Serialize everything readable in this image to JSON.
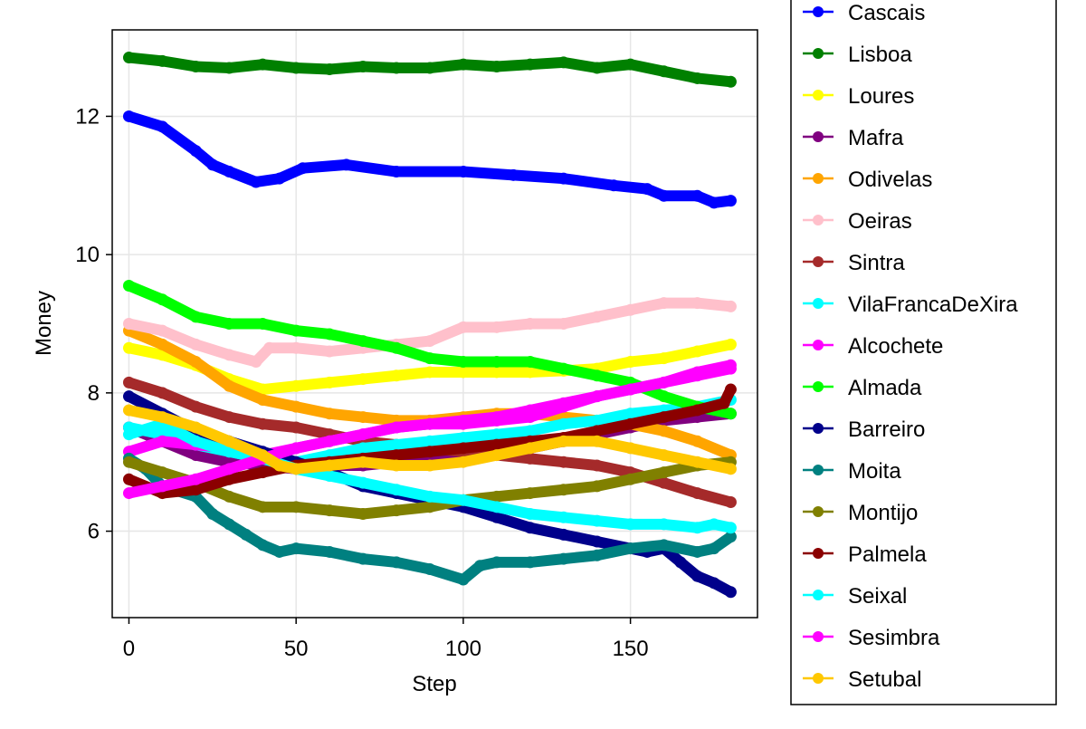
{
  "chart_data": {
    "type": "line",
    "title": "",
    "xlabel": "Step",
    "ylabel": "Money",
    "xlim": [
      -5,
      188
    ],
    "ylim": [
      4.75,
      13.25
    ],
    "x_ticks": [
      0,
      50,
      100,
      150
    ],
    "y_ticks": [
      6,
      8,
      10,
      12
    ],
    "grid": true,
    "legend_position": "right",
    "series": [
      {
        "name": "Cascais",
        "color": "#0000ff",
        "x": [
          0,
          10,
          20,
          25,
          30,
          38,
          45,
          52,
          65,
          80,
          100,
          115,
          130,
          145,
          155,
          160,
          170,
          175,
          180
        ],
        "y": [
          12.0,
          11.85,
          11.5,
          11.3,
          11.2,
          11.05,
          11.1,
          11.25,
          11.3,
          11.2,
          11.2,
          11.15,
          11.1,
          11.0,
          10.95,
          10.85,
          10.85,
          10.75,
          10.78
        ]
      },
      {
        "name": "Lisboa",
        "color": "#008000",
        "x": [
          0,
          10,
          20,
          30,
          40,
          50,
          60,
          70,
          80,
          90,
          100,
          110,
          120,
          130,
          140,
          150,
          160,
          170,
          180
        ],
        "y": [
          12.85,
          12.8,
          12.72,
          12.7,
          12.75,
          12.7,
          12.68,
          12.72,
          12.7,
          12.7,
          12.75,
          12.72,
          12.75,
          12.78,
          12.7,
          12.75,
          12.65,
          12.55,
          12.5
        ]
      },
      {
        "name": "Loures",
        "color": "#ffff00",
        "x": [
          0,
          10,
          20,
          30,
          40,
          50,
          60,
          70,
          80,
          90,
          100,
          110,
          120,
          130,
          140,
          150,
          160,
          170,
          180
        ],
        "y": [
          8.65,
          8.55,
          8.4,
          8.2,
          8.05,
          8.1,
          8.15,
          8.2,
          8.25,
          8.3,
          8.3,
          8.3,
          8.3,
          8.32,
          8.35,
          8.45,
          8.5,
          8.6,
          8.7
        ]
      },
      {
        "name": "Mafra",
        "color": "#800080",
        "x": [
          0,
          10,
          20,
          30,
          40,
          50,
          60,
          70,
          80,
          90,
          100,
          110,
          120,
          130,
          140,
          150,
          160,
          170,
          180
        ],
        "y": [
          7.5,
          7.3,
          7.1,
          7.0,
          6.95,
          6.9,
          6.95,
          6.95,
          7.0,
          7.05,
          7.1,
          7.15,
          7.2,
          7.3,
          7.4,
          7.5,
          7.6,
          7.65,
          7.7
        ]
      },
      {
        "name": "Odivelas",
        "color": "#ffa500",
        "x": [
          0,
          10,
          20,
          30,
          40,
          50,
          60,
          70,
          80,
          90,
          100,
          110,
          120,
          130,
          140,
          150,
          160,
          170,
          180
        ],
        "y": [
          8.9,
          8.7,
          8.45,
          8.1,
          7.9,
          7.8,
          7.7,
          7.65,
          7.6,
          7.6,
          7.65,
          7.7,
          7.7,
          7.65,
          7.6,
          7.55,
          7.45,
          7.3,
          7.1
        ]
      },
      {
        "name": "Oeiras",
        "color": "#ffc0cb",
        "x": [
          0,
          10,
          20,
          30,
          38,
          42,
          50,
          60,
          70,
          80,
          90,
          100,
          110,
          120,
          130,
          140,
          150,
          160,
          170,
          180
        ],
        "y": [
          9.0,
          8.9,
          8.7,
          8.55,
          8.45,
          8.65,
          8.65,
          8.6,
          8.65,
          8.7,
          8.75,
          8.95,
          8.95,
          9.0,
          9.0,
          9.1,
          9.2,
          9.3,
          9.3,
          9.25
        ]
      },
      {
        "name": "Sintra",
        "color": "#a52a2a",
        "x": [
          0,
          10,
          20,
          30,
          40,
          50,
          60,
          70,
          80,
          90,
          100,
          110,
          120,
          130,
          140,
          150,
          160,
          170,
          180
        ],
        "y": [
          8.15,
          8.0,
          7.8,
          7.65,
          7.55,
          7.5,
          7.4,
          7.3,
          7.25,
          7.2,
          7.15,
          7.1,
          7.05,
          7.0,
          6.95,
          6.85,
          6.7,
          6.55,
          6.42
        ]
      },
      {
        "name": "VilaFrancaDeXira",
        "color": "#00ffff",
        "x": [
          0,
          10,
          20,
          30,
          40,
          50,
          60,
          70,
          80,
          90,
          100,
          110,
          120,
          130,
          140,
          150,
          160,
          170,
          180
        ],
        "y": [
          7.5,
          7.4,
          7.25,
          7.15,
          7.05,
          7.0,
          7.1,
          7.2,
          7.25,
          7.3,
          7.35,
          7.4,
          7.45,
          7.55,
          7.6,
          7.7,
          7.75,
          7.8,
          7.9
        ]
      },
      {
        "name": "Alcochete",
        "color": "#ff00ff",
        "x": [
          0,
          10,
          20,
          30,
          40,
          50,
          60,
          70,
          80,
          90,
          100,
          110,
          120,
          130,
          140,
          150,
          160,
          170,
          180
        ],
        "y": [
          7.15,
          7.3,
          7.25,
          7.2,
          7.1,
          7.2,
          7.3,
          7.4,
          7.5,
          7.55,
          7.55,
          7.6,
          7.65,
          7.8,
          7.95,
          8.05,
          8.15,
          8.3,
          8.4
        ]
      },
      {
        "name": "Almada",
        "color": "#00ff00",
        "x": [
          0,
          10,
          20,
          30,
          40,
          50,
          60,
          70,
          80,
          90,
          100,
          110,
          120,
          130,
          140,
          150,
          160,
          170,
          180
        ],
        "y": [
          9.55,
          9.35,
          9.1,
          9.0,
          9.0,
          8.9,
          8.85,
          8.75,
          8.65,
          8.5,
          8.45,
          8.45,
          8.45,
          8.35,
          8.25,
          8.15,
          7.95,
          7.8,
          7.7
        ]
      },
      {
        "name": "Barreiro",
        "color": "#00008b",
        "x": [
          0,
          10,
          20,
          30,
          40,
          50,
          60,
          70,
          80,
          90,
          100,
          110,
          120,
          130,
          140,
          150,
          155,
          160,
          165,
          170,
          175,
          180
        ],
        "y": [
          7.95,
          7.7,
          7.45,
          7.3,
          7.15,
          7.0,
          6.85,
          6.65,
          6.55,
          6.45,
          6.35,
          6.2,
          6.05,
          5.95,
          5.85,
          5.75,
          5.7,
          5.75,
          5.55,
          5.35,
          5.25,
          5.12
        ]
      },
      {
        "name": "Moita",
        "color": "#008080",
        "x": [
          0,
          5,
          10,
          20,
          25,
          30,
          35,
          40,
          45,
          50,
          60,
          70,
          80,
          90,
          100,
          105,
          110,
          120,
          130,
          140,
          150,
          160,
          170,
          175,
          180
        ],
        "y": [
          7.05,
          6.9,
          6.65,
          6.5,
          6.25,
          6.1,
          5.95,
          5.8,
          5.7,
          5.75,
          5.7,
          5.6,
          5.55,
          5.45,
          5.3,
          5.5,
          5.55,
          5.55,
          5.6,
          5.65,
          5.75,
          5.8,
          5.7,
          5.75,
          5.92
        ]
      },
      {
        "name": "Montijo",
        "color": "#808000",
        "x": [
          0,
          10,
          20,
          30,
          40,
          50,
          60,
          70,
          80,
          90,
          100,
          110,
          120,
          130,
          140,
          150,
          160,
          170,
          180
        ],
        "y": [
          7.0,
          6.85,
          6.7,
          6.5,
          6.35,
          6.35,
          6.3,
          6.25,
          6.3,
          6.35,
          6.45,
          6.5,
          6.55,
          6.6,
          6.65,
          6.75,
          6.85,
          6.95,
          7.0
        ]
      },
      {
        "name": "Palmela",
        "color": "#8b0000",
        "x": [
          0,
          10,
          20,
          30,
          40,
          50,
          60,
          70,
          80,
          90,
          100,
          110,
          120,
          130,
          140,
          150,
          160,
          170,
          178,
          180
        ],
        "y": [
          6.75,
          6.55,
          6.6,
          6.75,
          6.85,
          6.95,
          7.0,
          7.05,
          7.1,
          7.15,
          7.2,
          7.25,
          7.3,
          7.35,
          7.45,
          7.55,
          7.65,
          7.75,
          7.85,
          8.05
        ]
      },
      {
        "name": "Seixal",
        "color": "#00ffff",
        "x": [
          0,
          10,
          20,
          30,
          40,
          50,
          60,
          70,
          80,
          90,
          100,
          110,
          120,
          130,
          140,
          150,
          160,
          170,
          175,
          180
        ],
        "y": [
          7.4,
          7.55,
          7.3,
          7.15,
          7.05,
          6.9,
          6.8,
          6.7,
          6.6,
          6.5,
          6.45,
          6.35,
          6.25,
          6.2,
          6.15,
          6.1,
          6.1,
          6.05,
          6.1,
          6.05
        ]
      },
      {
        "name": "Sesimbra",
        "color": "#ff00ff",
        "x": [
          0,
          10,
          20,
          30,
          40,
          50,
          60,
          70,
          80,
          90,
          100,
          110,
          120,
          130,
          140,
          150,
          160,
          170,
          180
        ],
        "y": [
          6.55,
          6.65,
          6.75,
          6.9,
          7.05,
          7.2,
          7.3,
          7.4,
          7.5,
          7.55,
          7.6,
          7.65,
          7.75,
          7.85,
          7.95,
          8.05,
          8.15,
          8.25,
          8.35
        ]
      },
      {
        "name": "Setubal",
        "color": "#ffc800",
        "x": [
          0,
          10,
          20,
          30,
          40,
          45,
          50,
          60,
          70,
          80,
          90,
          100,
          110,
          120,
          130,
          140,
          150,
          160,
          170,
          180
        ],
        "y": [
          7.75,
          7.65,
          7.5,
          7.3,
          7.1,
          6.95,
          6.9,
          6.95,
          7.0,
          6.95,
          6.95,
          7.0,
          7.1,
          7.2,
          7.3,
          7.3,
          7.2,
          7.1,
          7.0,
          6.9
        ]
      }
    ]
  }
}
